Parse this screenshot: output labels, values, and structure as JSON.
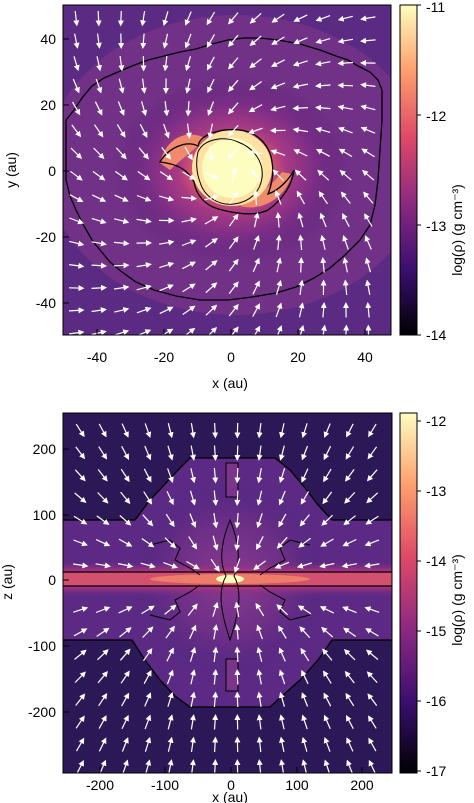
{
  "chart_data": [
    {
      "type": "heatmap",
      "panel": "face-on",
      "xlabel": "x (au)",
      "ylabel": "y (au)",
      "colorbar_label": "log(ρ) (g cm⁻³)",
      "xlim": [
        -50,
        48
      ],
      "ylim": [
        -50,
        50
      ],
      "xticks": [
        -40,
        -20,
        0,
        20,
        40
      ],
      "xtick_labels": [
        "-40",
        "-20",
        "0",
        "20",
        "40"
      ],
      "yticks": [
        -40,
        -20,
        0,
        20,
        40
      ],
      "ytick_labels": [
        "-40",
        "-20",
        "0",
        "20",
        "40"
      ],
      "color_range": [
        -14,
        -11
      ],
      "colorbar_ticks": [
        -14,
        -13,
        -12,
        -11
      ],
      "colorbar_tick_labels": [
        "-14",
        "-13",
        "-12",
        "-11"
      ],
      "colormap": [
        "#000004",
        "#3b0f70",
        "#8c2981",
        "#de4968",
        "#fe9f6d",
        "#fcfdbf"
      ],
      "features": {
        "core_peak": -11.0,
        "outer_background": -13.8,
        "velocity_vectors": "inflow toward center with clockwise swirl",
        "contours": [
          "outer density contour",
          "inner bar contour around central clump"
        ]
      }
    },
    {
      "type": "heatmap",
      "panel": "edge-on",
      "xlabel": "x (au)",
      "ylabel": "z (au)",
      "colorbar_label": "log(ρ) (g cm⁻³)",
      "xlim": [
        -255,
        245
      ],
      "ylim": [
        -260,
        260
      ],
      "xticks": [
        -200,
        -100,
        0,
        100,
        200
      ],
      "xtick_labels": [
        "-200",
        "-100",
        "0",
        "100",
        "200"
      ],
      "yticks": [
        -200,
        -100,
        0,
        100,
        200
      ],
      "ytick_labels": [
        "-200",
        "-100",
        "0",
        "100",
        "200"
      ],
      "color_range": [
        -17,
        -12
      ],
      "colorbar_ticks": [
        -17,
        -16,
        -15,
        -14,
        -13,
        -12
      ],
      "colorbar_tick_labels": [
        "-17",
        "-16",
        "-15",
        "-14",
        "-13",
        "-12"
      ],
      "colormap": [
        "#000004",
        "#3b0f70",
        "#8c2981",
        "#de4968",
        "#fe9f6d",
        "#fcfdbf"
      ],
      "features": {
        "midplane_peak": -12.0,
        "outer_background": -16.6,
        "velocity_vectors": "infall toward midplane and center",
        "contours": [
          "outer envelope contour",
          "inner outflow-lobe contours"
        ]
      }
    }
  ]
}
